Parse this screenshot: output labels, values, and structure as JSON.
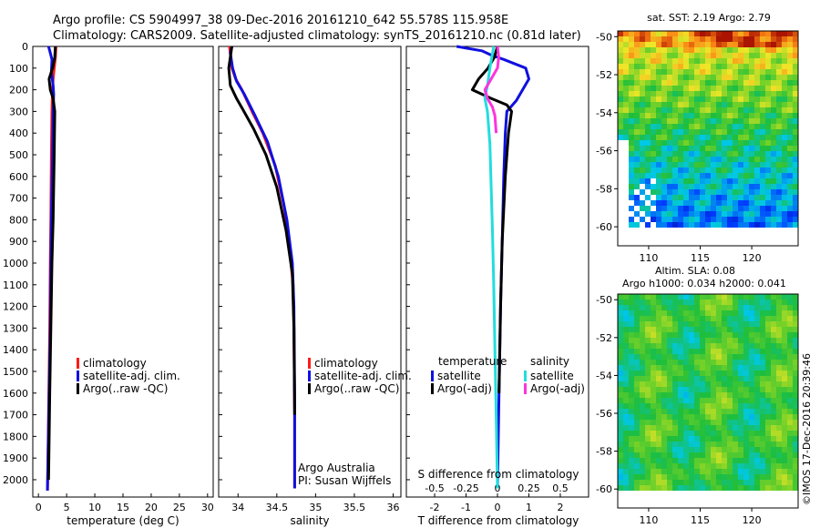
{
  "header": {
    "line1": "Argo profile: CS 5904997_38 09-Dec-2016 20161210_642 55.578S 115.958E",
    "line2": "Climatology: CARS2009. Satellite-adjusted climatology: synTS_20161210.nc (0.81d later)"
  },
  "colors": {
    "climatology": "#ff1a1a",
    "satellite": "#1010e0",
    "argo": "#000000",
    "salinity_satellite": "#22dddd",
    "salinity_argo": "#ff33dd"
  },
  "legend_panels": {
    "items": [
      "climatology",
      "satellite-adj. clim.",
      "Argo(..raw -QC)"
    ]
  },
  "legend_diff": {
    "temp_header": "temperature",
    "sal_header": "salinity",
    "temp_items": [
      "satellite",
      "Argo(-adj)"
    ],
    "sal_items": [
      "satellite",
      "Argo(-adj)"
    ]
  },
  "credit": {
    "line1": "Argo Australia",
    "line2": "PI: Susan Wijffels"
  },
  "side": {
    "sst_title": "sat. SST: 2.19 Argo: 2.79",
    "sla_title1": "Altim. SLA: 0.08",
    "sla_title2": "Argo h1000: 0.034 h2000: 0.041",
    "timestamp": "©IMOS 17-Dec-2016 20:39:46"
  },
  "chart_data": [
    {
      "type": "line",
      "name": "temperature profile",
      "xlabel": "temperature (deg C)",
      "xlim": [
        -1,
        31
      ],
      "ylim": [
        2080,
        0
      ],
      "xticks": [
        0,
        5,
        10,
        15,
        20,
        25,
        30
      ],
      "yticks": [
        0,
        100,
        200,
        300,
        400,
        500,
        600,
        700,
        800,
        900,
        1000,
        1100,
        1200,
        1300,
        1400,
        1500,
        1600,
        1700,
        1800,
        1900,
        2000
      ],
      "series": [
        {
          "name": "climatology",
          "x": [
            3.1,
            3.0,
            2.8,
            2.6,
            2.5,
            2.4,
            2.3,
            2.2,
            2.1,
            2.0,
            1.8,
            1.6
          ],
          "y": [
            0,
            50,
            100,
            150,
            200,
            300,
            500,
            800,
            1000,
            1300,
            1700,
            2050
          ]
        },
        {
          "name": "satellite-adj. clim.",
          "x": [
            1.8,
            2.0,
            2.4,
            2.3,
            2.6,
            2.7,
            2.6,
            2.5,
            2.3,
            2.2,
            2.1,
            1.9,
            1.7,
            1.6
          ],
          "y": [
            0,
            20,
            60,
            120,
            180,
            220,
            300,
            500,
            800,
            1000,
            1300,
            1600,
            1900,
            2050
          ]
        },
        {
          "name": "Argo(..raw -QC)",
          "x": [
            3.0,
            2.9,
            2.5,
            1.9,
            2.1,
            2.6,
            2.9,
            2.8,
            2.6,
            2.4,
            2.2,
            2.0,
            1.8
          ],
          "y": [
            0,
            50,
            100,
            150,
            200,
            240,
            300,
            500,
            800,
            1000,
            1300,
            1600,
            2000
          ]
        }
      ]
    },
    {
      "type": "line",
      "name": "salinity profile",
      "xlabel": "salinity",
      "xlim": [
        33.75,
        36.1
      ],
      "ylim": [
        2080,
        0
      ],
      "xticks": [
        34,
        34.5,
        35,
        35.5,
        36
      ],
      "series": [
        {
          "name": "climatology",
          "x": [
            33.89,
            33.92,
            33.97,
            34.05,
            34.18,
            34.32,
            34.48,
            34.6,
            34.67,
            34.71,
            34.72,
            34.73,
            34.73
          ],
          "y": [
            0,
            100,
            150,
            200,
            300,
            400,
            550,
            750,
            950,
            1100,
            1300,
            1700,
            2040
          ]
        },
        {
          "name": "satellite-adj. clim.",
          "x": [
            33.92,
            33.9,
            33.93,
            33.98,
            34.08,
            34.22,
            34.38,
            34.52,
            34.63,
            34.7,
            34.72,
            34.73,
            34.73
          ],
          "y": [
            0,
            30,
            100,
            160,
            220,
            320,
            440,
            600,
            800,
            1000,
            1200,
            1600,
            2040
          ]
        },
        {
          "name": "Argo(..raw -QC)",
          "x": [
            33.92,
            33.88,
            33.9,
            33.98,
            34.06,
            34.2,
            34.36,
            34.5,
            34.62,
            34.7,
            34.72,
            34.73
          ],
          "y": [
            0,
            100,
            180,
            240,
            290,
            380,
            500,
            650,
            850,
            1050,
            1300,
            1700
          ]
        }
      ]
    },
    {
      "type": "line",
      "name": "difference from climatology",
      "xlabel": "T difference from climatology",
      "xlabel_top": "S difference from climatology",
      "xlim": [
        -2.9,
        2.9
      ],
      "ylim": [
        2080,
        0
      ],
      "xticks": [
        -2,
        -1,
        0,
        1,
        2
      ],
      "xticks_top": [
        -0.5,
        -0.25,
        0,
        0.25,
        0.5
      ],
      "series": [
        {
          "name": "temperature satellite",
          "x": [
            -1.3,
            -0.5,
            -0.2,
            0.2,
            0.9,
            1.0,
            0.8,
            0.6,
            0.3,
            0.25,
            0.2,
            0.15,
            0.1,
            0.05,
            0.0
          ],
          "y": [
            0,
            20,
            40,
            60,
            100,
            150,
            200,
            250,
            300,
            400,
            600,
            900,
            1200,
            1600,
            2040
          ]
        },
        {
          "name": "temperature Argo(-adj)",
          "x": [
            0.0,
            -0.1,
            -0.3,
            -0.6,
            -0.8,
            -0.2,
            0.3,
            0.45,
            0.35,
            0.25,
            0.15,
            0.1,
            0.05
          ],
          "y": [
            0,
            50,
            100,
            150,
            200,
            240,
            270,
            300,
            400,
            600,
            900,
            1200,
            1600
          ]
        },
        {
          "name": "salinity satellite",
          "x": [
            -0.03,
            -0.06,
            -0.08,
            -0.1,
            -0.08,
            -0.06,
            -0.05,
            -0.04,
            -0.03,
            -0.02,
            -0.01,
            0.0
          ],
          "y": [
            0,
            100,
            180,
            240,
            300,
            450,
            650,
            850,
            1100,
            1400,
            1700,
            2040
          ]
        },
        {
          "name": "salinity Argo(-adj)",
          "x": [
            0.0,
            0.01,
            0.0,
            -0.05,
            -0.1,
            -0.08,
            -0.04,
            -0.02,
            -0.01
          ],
          "y": [
            0,
            50,
            100,
            150,
            200,
            240,
            280,
            320,
            400
          ]
        }
      ]
    },
    {
      "type": "heatmap",
      "name": "satellite SST map",
      "title": "sat. SST: 2.19 Argo: 2.79",
      "xticks": [
        110,
        115,
        120
      ],
      "yticks": [
        -50,
        -52,
        -54,
        -56,
        -58,
        -60
      ],
      "xlim": [
        107,
        124.5
      ],
      "ylim": [
        -61,
        -49.7
      ]
    },
    {
      "type": "heatmap",
      "name": "altimetry SLA map",
      "title": "Altim. SLA: 0.08",
      "xticks": [
        110,
        115,
        120
      ],
      "yticks": [
        -50,
        -52,
        -54,
        -56,
        -58,
        -60
      ],
      "xlim": [
        107,
        124.5
      ],
      "ylim": [
        -61,
        -49.7
      ]
    }
  ]
}
